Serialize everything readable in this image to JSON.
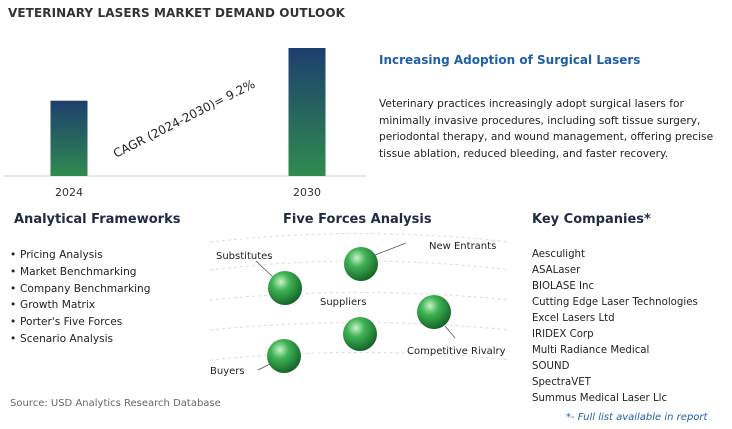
{
  "title": "VETERINARY LASERS MARKET DEMAND OUTLOOK",
  "chart_data": {
    "type": "bar",
    "categories": [
      "2024",
      "2030"
    ],
    "values": [
      1.0,
      1.7
    ],
    "annotation": "CAGR (2024-2030)=  9.2%",
    "title": "",
    "xlabel": "",
    "ylabel": "",
    "ylim": [
      0,
      1.7
    ],
    "grid": false,
    "legend": "none",
    "bar_gradient": [
      "#1e3f6e",
      "#2f8b4f"
    ]
  },
  "headline": "Increasing Adoption of Surgical Lasers",
  "description": "Veterinary practices increasingly adopt surgical lasers for minimally invasive procedures, including soft tissue surgery, periodontal therapy, and wound management, offering precise tissue ablation, reduced bleeding, and faster recovery.",
  "frameworks": {
    "title": "Analytical Frameworks",
    "items": [
      "Pricing Analysis",
      "Market Benchmarking",
      "Company Benchmarking",
      "Growth Matrix",
      "Porter's Five Forces",
      "Scenario Analysis"
    ]
  },
  "five_forces": {
    "title": "Five Forces Analysis",
    "labels": {
      "substitutes": "Substitutes",
      "new_entrants": "New Entrants",
      "suppliers": "Suppliers",
      "competitive_rivalry": "Competitive Rivalry",
      "buyers": "Buyers"
    },
    "sphere_color": "#2e9e4a"
  },
  "companies": {
    "title": "Key Companies*",
    "items": [
      "Aesculight",
      "ASALaser",
      "BIOLASE Inc",
      "Cutting Edge Laser Technologies",
      "Excel Lasers Ltd",
      "IRIDEX Corp",
      "Multi Radiance Medical",
      "SOUND",
      "SpectraVET",
      "Summus Medical Laser Llc"
    ],
    "footnote": "*- Full list available in report"
  },
  "source": "Source: USD Analytics Research Database"
}
